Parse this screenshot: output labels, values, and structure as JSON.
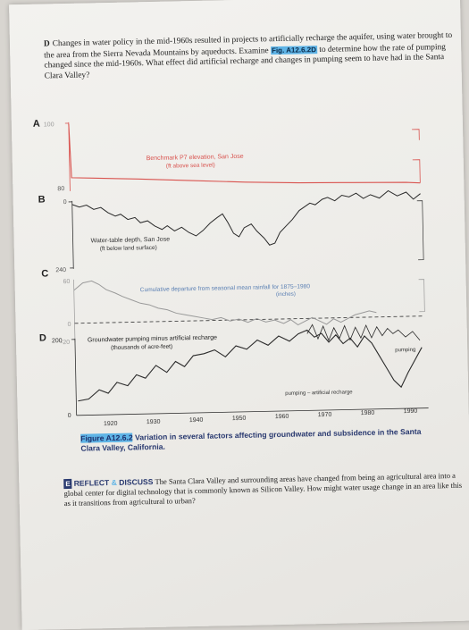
{
  "question": {
    "number": "D",
    "text_before": "Changes in water policy in the mid-1960s resulted in projects to artificially recharge the aquifer, using water brought to the area from the Sierra Nevada Mountains by aqueducts. Examine",
    "fig_ref": "Fig. A12.6.2D",
    "text_after": "to determine how the rate of pumping changed since the mid-1960s. What effect did artificial recharge and changes in pumping seem to have had in the Santa Clara Valley?"
  },
  "figure": {
    "panel_a": {
      "letter": "A",
      "axis_top": "100",
      "axis_bottom": "80",
      "label_line1": "Benchmark P7 elevation, San Jose",
      "label_line2": "(ft above sea level)"
    },
    "panel_b": {
      "letter": "B",
      "axis_top": "0",
      "axis_bottom": "240",
      "label_line1": "Water-table depth, San Jose",
      "label_line2": "(ft below land surface)"
    },
    "panel_c": {
      "letter": "C",
      "axis_top": "60",
      "axis_mid": "0",
      "axis_bottom": "-20",
      "label_line1": "Cumulative departure from seasonal mean rainfall for 1875–1980",
      "label_line2": "(inches)"
    },
    "panel_d": {
      "letter": "D",
      "axis_top": "200",
      "axis_bottom": "0",
      "label_line1": "Groundwater pumping minus artificial recharge",
      "label_line2": "(thousands of acre-feet)",
      "label_pumping": "pumping",
      "label_net": "pumping – artificial recharge"
    },
    "x_ticks": [
      "1920",
      "1930",
      "1940",
      "1950",
      "1960",
      "1970",
      "1980",
      "1990"
    ]
  },
  "caption": {
    "fig_id": "Figure A12.6.2",
    "text": "Variation in several factors affecting groundwater and subsidence in the Santa Clara Valley, California."
  },
  "reflect": {
    "badge": "E",
    "kw1": "REFLECT",
    "kw_amp": "&",
    "kw2": "DISCUSS",
    "text": "The Santa Clara Valley and surrounding areas have changed from being an agricultural area into a global center for digital technology that is commonly known as Silicon Valley. How might water usage change in an area like this as it transitions from agricultural to urban?"
  },
  "colors": {
    "curve_red": "#d9534f",
    "line_dark": "#2b2b2b",
    "highlight": "#5fb4e6",
    "caption_blue": "#2a3a70"
  }
}
